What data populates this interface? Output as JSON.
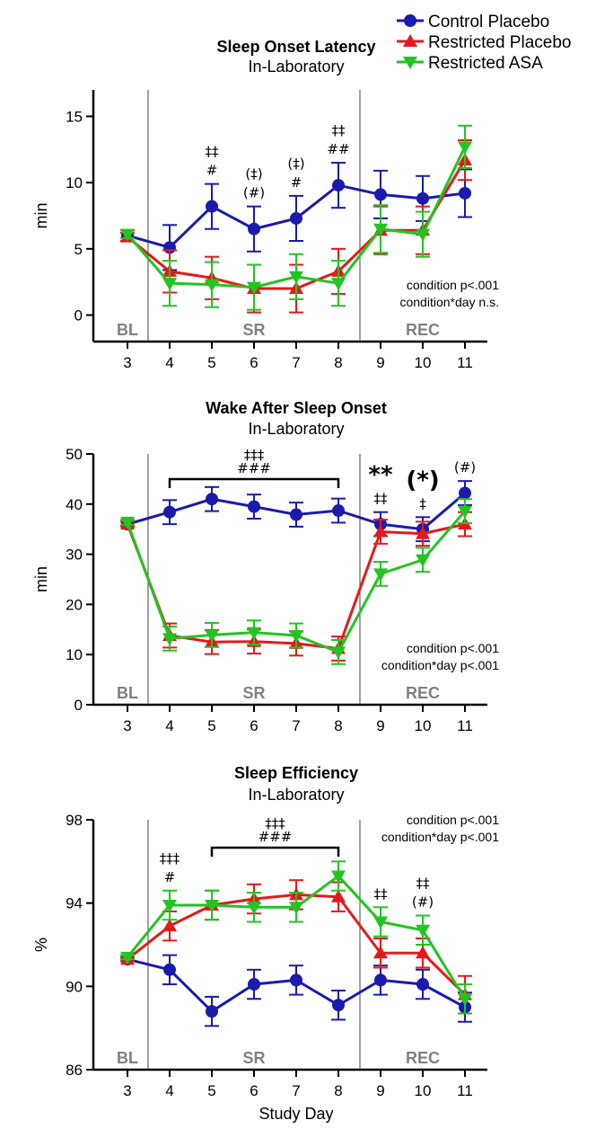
{
  "legend": [
    {
      "name": "Control Placebo",
      "color": "#1a1aad",
      "marker": "circle"
    },
    {
      "name": "Restricted Placebo",
      "color": "#e31a1c",
      "marker": "triangle-up"
    },
    {
      "name": "Restricted ASA",
      "color": "#22c422",
      "marker": "triangle-down"
    }
  ],
  "x_label": "Study Day",
  "phases": [
    "BL",
    "SR",
    "REC"
  ],
  "chart_data": [
    {
      "type": "line",
      "title": "Sleep Onset Latency",
      "subtitle": "In-Laboratory",
      "ylabel": "min",
      "xlabel": "",
      "ylim": [
        -2,
        17
      ],
      "yticks": [
        0,
        5,
        10,
        15
      ],
      "x": [
        3,
        4,
        5,
        6,
        7,
        8,
        9,
        10,
        11
      ],
      "series": [
        {
          "name": "Control Placebo",
          "values": [
            6.0,
            5.1,
            8.2,
            6.5,
            7.3,
            9.8,
            9.1,
            8.8,
            9.2
          ],
          "errors": [
            0.4,
            1.7,
            1.7,
            1.7,
            1.7,
            1.7,
            1.8,
            1.7,
            1.8
          ]
        },
        {
          "name": "Restricted Placebo",
          "values": [
            5.9,
            3.3,
            2.8,
            2.0,
            2.0,
            3.3,
            6.4,
            6.4,
            11.7
          ],
          "errors": [
            0.3,
            1.6,
            1.6,
            1.8,
            1.8,
            1.7,
            1.8,
            1.8,
            1.5
          ]
        },
        {
          "name": "Restricted ASA",
          "values": [
            6.1,
            2.4,
            2.3,
            2.1,
            2.9,
            2.4,
            6.5,
            6.1,
            12.7
          ],
          "errors": [
            0.3,
            1.7,
            1.7,
            1.7,
            1.7,
            1.7,
            1.8,
            1.7,
            1.6
          ]
        }
      ],
      "annotations": [
        {
          "x": 5,
          "lines": [
            "‡‡",
            "#"
          ]
        },
        {
          "x": 6,
          "lines": [
            "(‡)",
            "(#)"
          ]
        },
        {
          "x": 7,
          "lines": [
            "(‡)",
            "#"
          ]
        },
        {
          "x": 8,
          "lines": [
            "‡‡",
            "##"
          ]
        }
      ],
      "stats": [
        "condition p<.001",
        "condition*day n.s."
      ],
      "stats_position": "bottom-right"
    },
    {
      "type": "line",
      "title": "Wake After Sleep Onset",
      "subtitle": "In-Laboratory",
      "ylabel": "min",
      "xlabel": "",
      "ylim": [
        0,
        50
      ],
      "yticks": [
        0,
        10,
        20,
        30,
        40,
        50
      ],
      "x": [
        3,
        4,
        5,
        6,
        7,
        8,
        9,
        10,
        11
      ],
      "series": [
        {
          "name": "Control Placebo",
          "values": [
            36.0,
            38.4,
            41.0,
            39.5,
            37.9,
            38.7,
            36.0,
            35.0,
            42.2
          ],
          "errors": [
            0.5,
            2.4,
            2.4,
            2.4,
            2.4,
            2.4,
            2.4,
            2.4,
            2.4
          ]
        },
        {
          "name": "Restricted Placebo",
          "values": [
            36.0,
            13.8,
            12.5,
            12.6,
            12.2,
            11.2,
            34.5,
            34.1,
            36.0
          ],
          "errors": [
            0.5,
            2.4,
            2.4,
            2.4,
            2.4,
            2.4,
            2.4,
            2.4,
            2.4
          ]
        },
        {
          "name": "Restricted ASA",
          "values": [
            36.4,
            13.2,
            13.9,
            14.4,
            13.8,
            10.5,
            26.1,
            28.9,
            38.6
          ],
          "errors": [
            0.5,
            2.4,
            2.4,
            2.4,
            2.4,
            2.4,
            2.4,
            2.4,
            2.4
          ]
        }
      ],
      "annotations": [
        {
          "x": 6,
          "lines": [
            "‡‡‡",
            "###"
          ],
          "bracket": [
            4,
            8
          ]
        },
        {
          "x": 9,
          "lines": [
            "‡‡"
          ],
          "big": "**"
        },
        {
          "x": 10,
          "lines": [
            "‡"
          ],
          "big": "(*)"
        },
        {
          "x": 11,
          "lines": [
            "(#)"
          ]
        }
      ],
      "stats": [
        "condition p<.001",
        "condition*day p<.001"
      ],
      "stats_position": "bottom-right"
    },
    {
      "type": "line",
      "title": "Sleep Efficiency",
      "subtitle": "In-Laboratory",
      "ylabel": "%",
      "xlabel": "Study Day",
      "ylim": [
        86,
        98
      ],
      "yticks": [
        86,
        90,
        94,
        98
      ],
      "x": [
        3,
        4,
        5,
        6,
        7,
        8,
        9,
        10,
        11
      ],
      "series": [
        {
          "name": "Control Placebo",
          "values": [
            91.3,
            90.8,
            88.8,
            90.1,
            90.3,
            89.1,
            90.3,
            90.1,
            89.0
          ],
          "errors": [
            0.1,
            0.7,
            0.7,
            0.7,
            0.7,
            0.7,
            0.7,
            0.7,
            0.7
          ]
        },
        {
          "name": "Restricted Placebo",
          "values": [
            91.3,
            92.9,
            93.9,
            94.2,
            94.4,
            94.3,
            91.6,
            91.6,
            89.6
          ],
          "errors": [
            0.1,
            0.7,
            0.7,
            0.7,
            0.7,
            0.7,
            0.7,
            0.7,
            0.9
          ]
        },
        {
          "name": "Restricted ASA",
          "values": [
            91.4,
            93.9,
            93.9,
            93.8,
            93.8,
            95.3,
            93.1,
            92.7,
            89.4
          ],
          "errors": [
            0.1,
            0.7,
            0.7,
            0.7,
            0.7,
            0.7,
            0.7,
            0.7,
            0.7
          ]
        }
      ],
      "annotations": [
        {
          "x": 4,
          "lines": [
            "‡‡‡",
            "#"
          ]
        },
        {
          "x": 6.5,
          "lines": [
            "‡‡‡",
            "###"
          ],
          "bracket": [
            5,
            8
          ]
        },
        {
          "x": 9,
          "lines": [
            "‡‡"
          ]
        },
        {
          "x": 10,
          "lines": [
            "‡‡",
            "(#)"
          ]
        }
      ],
      "stats": [
        "condition p<.001",
        "condition*day p<.001"
      ],
      "stats_position": "top-right"
    }
  ]
}
